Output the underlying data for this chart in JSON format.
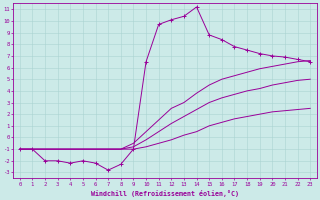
{
  "xlabel": "Windchill (Refroidissement éolien,°C)",
  "bg_color": "#cceae8",
  "grid_color": "#aad4d2",
  "line_color": "#990099",
  "xlim": [
    -0.5,
    23.5
  ],
  "ylim": [
    -3.5,
    11.5
  ],
  "xticks": [
    0,
    1,
    2,
    3,
    4,
    5,
    6,
    7,
    8,
    9,
    10,
    11,
    12,
    13,
    14,
    15,
    16,
    17,
    18,
    19,
    20,
    21,
    22,
    23
  ],
  "yticks": [
    -3,
    -2,
    -1,
    0,
    1,
    2,
    3,
    4,
    5,
    6,
    7,
    8,
    9,
    10,
    11
  ],
  "series_smooth1_x": [
    0,
    1,
    2,
    3,
    4,
    5,
    6,
    7,
    8,
    9,
    10,
    11,
    12,
    13,
    14,
    15,
    16,
    17,
    18,
    19,
    20,
    21,
    22,
    23
  ],
  "series_smooth1_y": [
    -1.0,
    -1.0,
    -1.0,
    -1.0,
    -1.0,
    -1.0,
    -1.0,
    -1.0,
    -1.0,
    -1.0,
    -0.8,
    -0.5,
    -0.2,
    0.2,
    0.5,
    1.0,
    1.3,
    1.6,
    1.8,
    2.0,
    2.2,
    2.3,
    2.4,
    2.5
  ],
  "series_smooth2_x": [
    0,
    1,
    2,
    3,
    4,
    5,
    6,
    7,
    8,
    9,
    10,
    11,
    12,
    13,
    14,
    15,
    16,
    17,
    18,
    19,
    20,
    21,
    22,
    23
  ],
  "series_smooth2_y": [
    -1.0,
    -1.0,
    -1.0,
    -1.0,
    -1.0,
    -1.0,
    -1.0,
    -1.0,
    -1.0,
    -0.8,
    -0.2,
    0.5,
    1.2,
    1.8,
    2.4,
    3.0,
    3.4,
    3.7,
    4.0,
    4.2,
    4.5,
    4.7,
    4.9,
    5.0
  ],
  "series_smooth3_x": [
    0,
    1,
    2,
    3,
    4,
    5,
    6,
    7,
    8,
    9,
    10,
    11,
    12,
    13,
    14,
    15,
    16,
    17,
    18,
    19,
    20,
    21,
    22,
    23
  ],
  "series_smooth3_y": [
    -1.0,
    -1.0,
    -1.0,
    -1.0,
    -1.0,
    -1.0,
    -1.0,
    -1.0,
    -1.0,
    -0.5,
    0.5,
    1.5,
    2.5,
    3.0,
    3.8,
    4.5,
    5.0,
    5.3,
    5.6,
    5.9,
    6.1,
    6.3,
    6.5,
    6.6
  ],
  "series_marker_x": [
    0,
    1,
    2,
    3,
    4,
    5,
    6,
    7,
    8,
    9,
    10,
    11,
    12,
    13,
    14,
    15,
    16,
    17,
    18,
    19,
    20,
    21,
    22,
    23
  ],
  "series_marker_y": [
    -1.0,
    -1.0,
    -2.0,
    -2.0,
    -2.2,
    -2.0,
    -2.2,
    -2.8,
    -2.3,
    -1.0,
    6.5,
    9.7,
    10.1,
    10.4,
    11.2,
    8.8,
    8.4,
    7.8,
    7.5,
    7.2,
    7.0,
    6.9,
    6.7,
    6.5
  ]
}
